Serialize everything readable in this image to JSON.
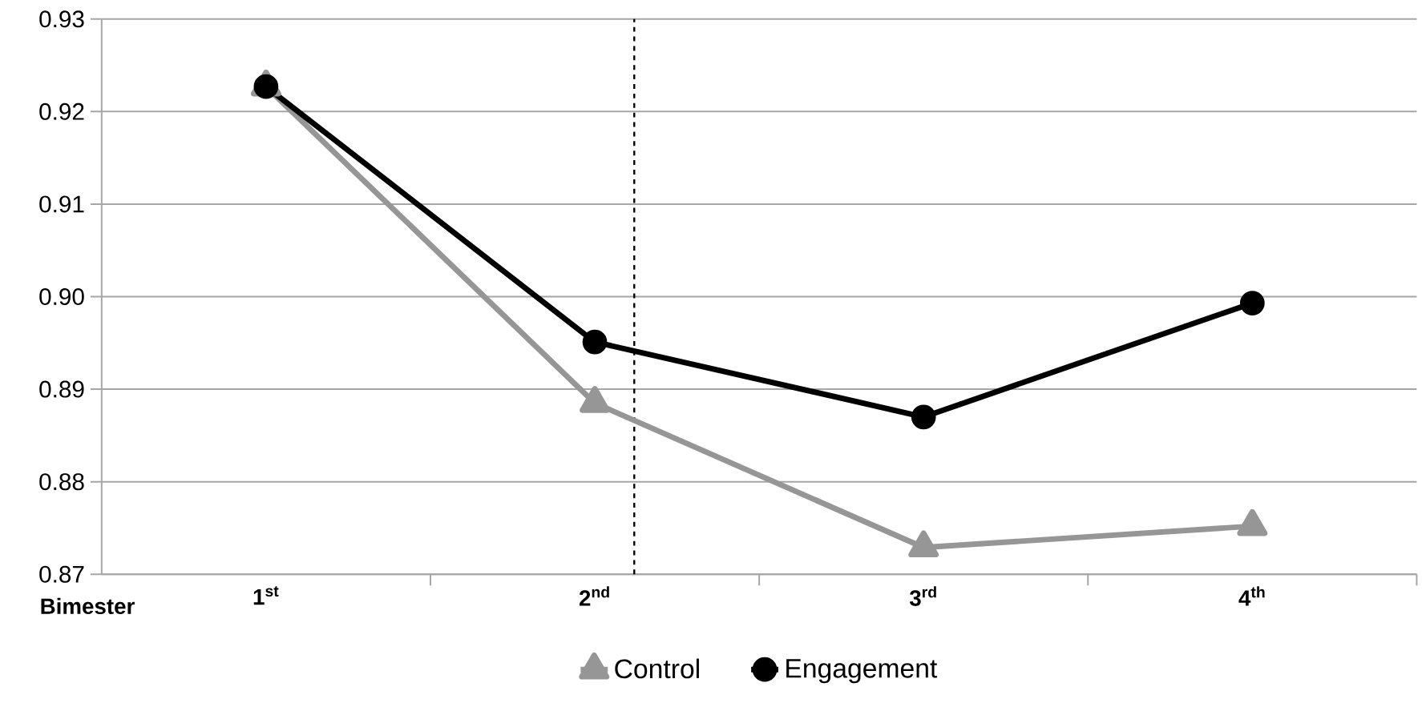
{
  "chart_data": {
    "type": "line",
    "xlabel": "Bimester",
    "x": [
      1,
      2,
      3,
      4
    ],
    "series": [
      {
        "name": "Control",
        "color": "#969696",
        "marker": "triangle",
        "values": [
          0.9227,
          0.8885,
          0.8729,
          0.8752
        ]
      },
      {
        "name": "Engagement",
        "color": "#000000",
        "marker": "circle",
        "values": [
          0.9227,
          0.8951,
          0.887,
          0.8993
        ]
      }
    ],
    "xlim": [
      0.5,
      4.5
    ],
    "xticks": [
      {
        "value": 1,
        "label": "1$^{st}$"
      },
      {
        "value": 1.5,
        "label": null
      },
      {
        "value": 2,
        "label": "2$^{nd}$"
      },
      {
        "value": 2.5,
        "label": null
      },
      {
        "value": 3,
        "label": "3$^{rd}$"
      },
      {
        "value": 3.5,
        "label": null
      },
      {
        "value": 4,
        "label": "4$^{th}$"
      },
      {
        "value": 4.5,
        "label": null
      }
    ],
    "ylim": [
      0.87,
      0.93
    ],
    "yticks": [
      0.87,
      0.88,
      0.89,
      {
        "value": 0.9,
        "label": "0.90"
      },
      0.91,
      0.92,
      0.93
    ],
    "ref_lines": [
      {
        "axis": "x",
        "value": 2.12,
        "color": "#000000",
        "line_style": "dashed"
      }
    ],
    "grid": "y",
    "legend": "bottom",
    "line_style": "solid"
  }
}
